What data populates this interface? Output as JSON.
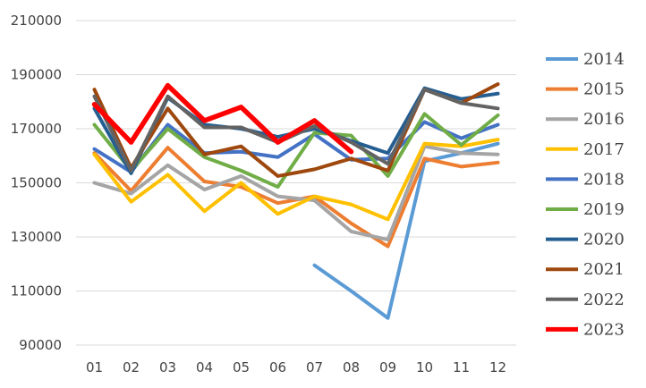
{
  "chart_data": {
    "type": "line",
    "categories": [
      "01",
      "02",
      "03",
      "04",
      "05",
      "06",
      "07",
      "08",
      "09",
      "10",
      "11",
      "12"
    ],
    "ylim": [
      90000,
      210000
    ],
    "yticks": [
      90000,
      110000,
      130000,
      150000,
      170000,
      190000,
      210000
    ],
    "ytick_labels": [
      "90000",
      "110000",
      "130000",
      "150000",
      "170000",
      "190000",
      "210000"
    ],
    "grid": true,
    "legend_position": "right",
    "series": [
      {
        "name": "2014",
        "color": "#5b9bd5",
        "values": [
          null,
          null,
          null,
          null,
          null,
          null,
          119500,
          110000,
          100000,
          158000,
          161000,
          164500
        ]
      },
      {
        "name": "2015",
        "color": "#ed7d31",
        "values": [
          161000,
          147000,
          163000,
          150500,
          148500,
          142500,
          145000,
          135000,
          126500,
          159000,
          156000,
          157500
        ]
      },
      {
        "name": "2016",
        "color": "#a5a5a5",
        "values": [
          150000,
          146000,
          156500,
          147500,
          152500,
          145000,
          143500,
          132000,
          129000,
          163500,
          161000,
          160500
        ]
      },
      {
        "name": "2017",
        "color": "#ffc000",
        "values": [
          160500,
          143000,
          153000,
          139500,
          150000,
          138500,
          145000,
          142000,
          136500,
          164500,
          163500,
          166000
        ]
      },
      {
        "name": "2018",
        "color": "#4472c4",
        "values": [
          162500,
          154000,
          171500,
          161000,
          161500,
          159500,
          168000,
          158500,
          159000,
          172500,
          166500,
          171500
        ]
      },
      {
        "name": "2019",
        "color": "#70ad47",
        "values": [
          171500,
          154500,
          170000,
          159500,
          154500,
          148500,
          168500,
          167500,
          152500,
          175500,
          164000,
          175000
        ]
      },
      {
        "name": "2020",
        "color": "#255e91",
        "values": [
          177500,
          153500,
          181500,
          171500,
          170000,
          167000,
          170000,
          165500,
          161000,
          185000,
          181000,
          183000
        ]
      },
      {
        "name": "2021",
        "color": "#9e480e",
        "values": [
          184500,
          155500,
          177500,
          160500,
          163500,
          152500,
          155000,
          159000,
          154500,
          184500,
          179500,
          186500
        ]
      },
      {
        "name": "2022",
        "color": "#636363",
        "values": [
          182000,
          154500,
          182000,
          170500,
          170500,
          165000,
          171000,
          165000,
          157000,
          184500,
          179500,
          177500
        ]
      },
      {
        "name": "2023",
        "color": "#ff0000",
        "values": [
          179000,
          165000,
          186000,
          173000,
          178000,
          165000,
          173000,
          161500,
          null,
          null,
          null,
          null
        ]
      }
    ]
  }
}
